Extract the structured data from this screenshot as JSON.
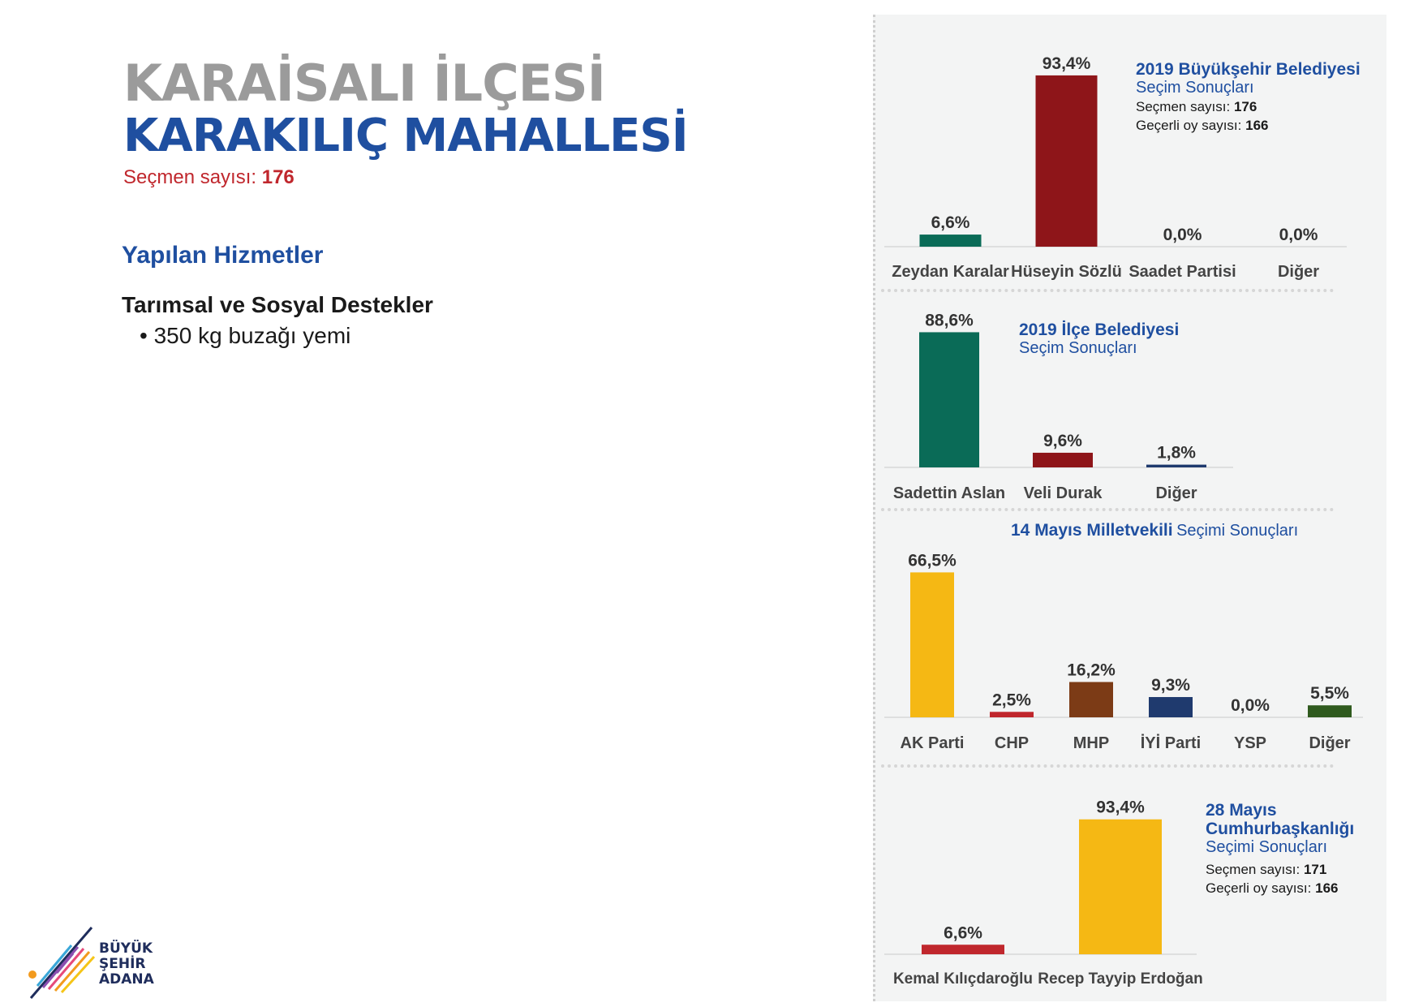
{
  "left": {
    "district_title": "KARAİSALI İLÇESİ",
    "neighborhood_title": "KARAKILIÇ MAHALLESİ",
    "voters_label": "Seçmen sayısı:",
    "voters_value": "176",
    "services_heading": "Yapılan Hizmetler",
    "category": "Tarımsal ve Sosyal Destekler",
    "items": [
      "350 kg buzağı yemi"
    ],
    "logo_text": [
      "BÜYÜK",
      "ŞEHİR",
      "ADANA"
    ]
  },
  "chart_data": [
    {
      "type": "bar",
      "title_bold": "2019 Büyükşehir Belediyesi",
      "title_normal": "Seçim Sonuçları",
      "voters_label": "Seçmen sayısı:",
      "voters_value": "176",
      "valid_label": "Geçerli oy sayısı:",
      "valid_value": "166",
      "categories": [
        "Zeydan Karalar",
        "Hüseyin Sözlü",
        "Saadet Partisi",
        "Diğer"
      ],
      "values": [
        6.6,
        93.4,
        0.0,
        0.0
      ],
      "labels": [
        "6,6%",
        "93,4%",
        "0,0%",
        "0,0%"
      ],
      "colors": [
        "#0a6b57",
        "#8e1519",
        "#8e1519",
        "#8e1519"
      ],
      "ylim": [
        0,
        100
      ]
    },
    {
      "type": "bar",
      "title_bold": "2019 İlçe Belediyesi",
      "title_normal": "Seçim Sonuçları",
      "categories": [
        "Sadettin Aslan",
        "Veli Durak",
        "Diğer"
      ],
      "values": [
        88.6,
        9.6,
        1.8
      ],
      "labels": [
        "88,6%",
        "9,6%",
        "1,8%"
      ],
      "colors": [
        "#0a6b57",
        "#8e1519",
        "#1f3a6e"
      ],
      "ylim": [
        0,
        100
      ]
    },
    {
      "type": "bar",
      "title_bold": "14 Mayıs Milletvekili",
      "title_normal": "Seçimi Sonuçları",
      "categories": [
        "AK Parti",
        "CHP",
        "MHP",
        "İYİ Parti",
        "YSP",
        "Diğer"
      ],
      "values": [
        66.5,
        2.5,
        16.2,
        9.3,
        0.0,
        5.5
      ],
      "labels": [
        "66,5%",
        "2,5%",
        "16,2%",
        "9,3%",
        "0,0%",
        "5,5%"
      ],
      "colors": [
        "#f5b814",
        "#c0272d",
        "#7c3b16",
        "#1f3a6e",
        "#7a2a2a",
        "#2f5a1e"
      ],
      "ylim": [
        0,
        70
      ]
    },
    {
      "type": "bar",
      "title_bold_1": "28 Mayıs",
      "title_bold_2": "Cumhurbaşkanlığı",
      "title_normal": "Seçimi Sonuçları",
      "voters_label": "Seçmen sayısı:",
      "voters_value": "171",
      "valid_label": "Geçerli oy sayısı:",
      "valid_value": "166",
      "categories": [
        "Kemal Kılıçdaroğlu",
        "Recep Tayyip Erdoğan"
      ],
      "values": [
        6.6,
        93.4
      ],
      "labels": [
        "6,6%",
        "93,4%"
      ],
      "colors": [
        "#c0272d",
        "#f5b814"
      ],
      "ylim": [
        0,
        100
      ]
    }
  ]
}
